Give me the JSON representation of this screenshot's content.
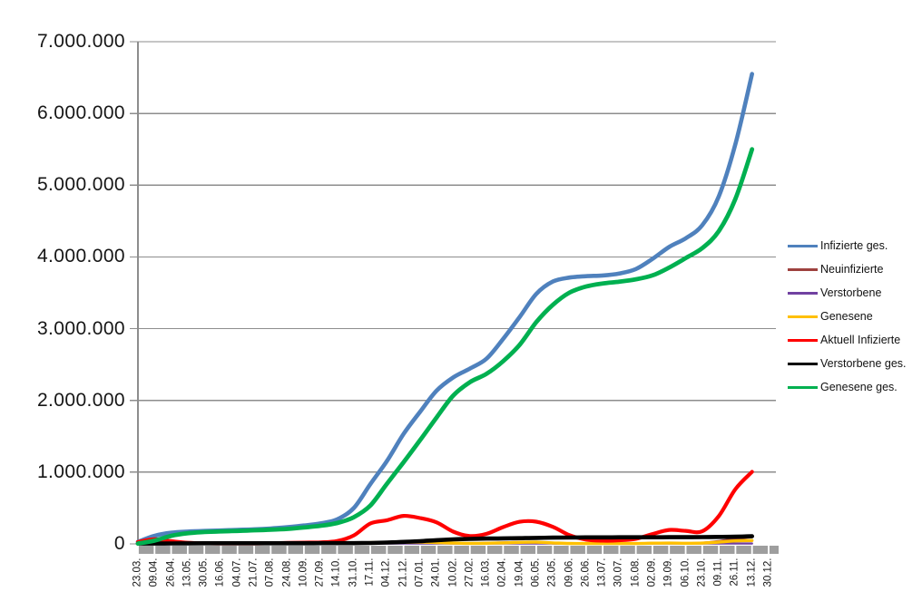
{
  "window": {
    "background": "#ffffff"
  },
  "colors": {
    "gridline": "#8d8d8d",
    "axis_line": "#8d8d8d",
    "tick_band": "#9e9e9e",
    "text": "#161616"
  },
  "chart_data": {
    "type": "line",
    "title": "",
    "xlabel": "",
    "ylabel": "",
    "grid": "horizontal",
    "legend_position": "right",
    "ylim": [
      0,
      7000000
    ],
    "y_tick_step": 1000000,
    "y_tick_labels": [
      "0",
      "1.000.000",
      "2.000.000",
      "3.000.000",
      "4.000.000",
      "5.000.000",
      "6.000.000",
      "7.000.000"
    ],
    "categories": [
      "23.03.",
      "09.04.",
      "26.04.",
      "13.05.",
      "30.05.",
      "16.06.",
      "04.07.",
      "21.07.",
      "07.08.",
      "24.08.",
      "10.09.",
      "27.09.",
      "14.10.",
      "31.10.",
      "17.11.",
      "04.12.",
      "21.12.",
      "07.01.",
      "24.01.",
      "10.02.",
      "27.02.",
      "16.03.",
      "02.04.",
      "19.04.",
      "06.05.",
      "23.05.",
      "09.06.",
      "26.06.",
      "13.07.",
      "30.07.",
      "16.08.",
      "02.09.",
      "19.09.",
      "06.10.",
      "23.10.",
      "09.11.",
      "26.11.",
      "13.12.",
      "30.12."
    ],
    "series": [
      {
        "name": "Infizierte ges.",
        "color": "#4F81BD",
        "values": [
          29000,
          113000,
          156000,
          172000,
          181000,
          187000,
          196000,
          203000,
          215000,
          233000,
          256000,
          285000,
          341000,
          499000,
          833000,
          1153000,
          1530000,
          1841000,
          2137000,
          2321000,
          2444000,
          2581000,
          2857000,
          3164000,
          3483000,
          3657000,
          3712000,
          3731000,
          3741000,
          3769000,
          3831000,
          3972000,
          4138000,
          4260000,
          4441000,
          4844000,
          5573000,
          6550000,
          null
        ]
      },
      {
        "name": "Neuinfizierte",
        "color": "#9E413E",
        "values": [
          4200,
          5300,
          1800,
          900,
          600,
          400,
          400,
          500,
          1000,
          1600,
          1800,
          2400,
          5100,
          19100,
          22500,
          22000,
          25000,
          22500,
          16000,
          8000,
          9000,
          13000,
          20000,
          25500,
          21000,
          7500,
          3200,
          1000,
          1500,
          2600,
          8200,
          13500,
          10500,
          8500,
          15500,
          39000,
          66000,
          51000,
          null
        ]
      },
      {
        "name": "Verstorbene",
        "color": "#7141A1",
        "values": [
          30,
          170,
          230,
          110,
          50,
          25,
          10,
          8,
          6,
          6,
          6,
          12,
          22,
          50,
          155,
          410,
          730,
          910,
          840,
          550,
          360,
          250,
          200,
          250,
          250,
          150,
          80,
          60,
          25,
          20,
          18,
          40,
          60,
          65,
          85,
          200,
          340,
          450,
          null
        ]
      },
      {
        "name": "Genesene",
        "color": "#FFC000",
        "values": [
          2600,
          4200,
          3400,
          1700,
          700,
          400,
          300,
          400,
          700,
          1100,
          1500,
          1900,
          3300,
          9500,
          17500,
          20500,
          23000,
          24500,
          19500,
          11500,
          7000,
          9000,
          14500,
          21000,
          23500,
          14500,
          6500,
          2300,
          1200,
          1700,
          4800,
          9500,
          11000,
          8500,
          11500,
          24000,
          42000,
          47000,
          null
        ]
      },
      {
        "name": "Aktuell Infizierte",
        "color": "#FF0000",
        "values": [
          26000,
          64000,
          38000,
          16000,
          9000,
          6000,
          6000,
          6000,
          9000,
          15000,
          18000,
          22000,
          40000,
          117000,
          284000,
          330000,
          390000,
          360000,
          300000,
          170000,
          110000,
          140000,
          234000,
          308000,
          309000,
          238000,
          121000,
          60000,
          45000,
          50000,
          71000,
          138000,
          194000,
          182000,
          176000,
          388000,
          763000,
          1004000,
          null
        ]
      },
      {
        "name": "Verstorbene ges.",
        "color": "#000000",
        "values": [
          300,
          2400,
          5900,
          7900,
          8600,
          8900,
          9100,
          9200,
          9300,
          9300,
          9400,
          9500,
          9700,
          10500,
          13200,
          18900,
          27300,
          38000,
          52000,
          63000,
          70000,
          74000,
          77000,
          80000,
          84000,
          87000,
          89000,
          90500,
          91300,
          91700,
          91900,
          92300,
          93000,
          93900,
          95000,
          96900,
          100100,
          106000,
          null
        ]
      },
      {
        "name": "Genesene ges.",
        "color": "#00B050",
        "values": [
          3000,
          46000,
          112000,
          148000,
          165000,
          174000,
          181000,
          189000,
          198000,
          209000,
          229000,
          253000,
          291000,
          372000,
          535000,
          837000,
          1136000,
          1445000,
          1764000,
          2069000,
          2254000,
          2370000,
          2546000,
          2776000,
          3090000,
          3332000,
          3502000,
          3587000,
          3630000,
          3655000,
          3688000,
          3742000,
          3851000,
          3984000,
          4122000,
          4360000,
          4810000,
          5500000,
          null
        ]
      }
    ]
  }
}
